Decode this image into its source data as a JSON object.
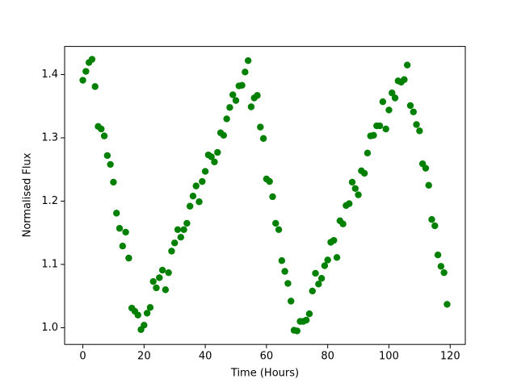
{
  "chart_data": {
    "type": "scatter",
    "xlabel": "Time (Hours)",
    "ylabel": "Normalised Flux",
    "color": "#008000",
    "x": [
      0,
      1,
      2,
      3,
      4,
      5,
      6,
      7,
      8,
      9,
      10,
      11,
      12,
      13,
      14,
      15,
      16,
      17,
      18,
      19,
      20,
      21,
      22,
      23,
      24,
      25,
      26,
      27,
      28,
      29,
      30,
      31,
      32,
      33,
      34,
      35,
      36,
      37,
      38,
      39,
      40,
      41,
      42,
      43,
      44,
      45,
      46,
      47,
      48,
      49,
      50,
      51,
      52,
      53,
      54,
      55,
      56,
      57,
      58,
      59,
      60,
      61,
      62,
      63,
      64,
      65,
      66,
      67,
      68,
      69,
      70,
      71,
      72,
      73,
      74,
      75,
      76,
      77,
      78,
      79,
      80,
      81,
      82,
      83,
      84,
      85,
      86,
      87,
      88,
      89,
      90,
      91,
      92,
      93,
      94,
      95,
      96,
      97,
      98,
      99,
      100,
      101,
      102,
      103,
      104,
      105,
      106,
      107,
      108,
      109,
      110,
      111,
      112,
      113,
      114,
      115,
      116,
      117,
      118,
      119
    ],
    "values": [
      1.391,
      1.405,
      1.419,
      1.424,
      1.381,
      1.318,
      1.314,
      1.303,
      1.272,
      1.258,
      1.23,
      1.181,
      1.157,
      1.129,
      1.151,
      1.11,
      1.031,
      1.026,
      1.02,
      0.997,
      1.004,
      1.023,
      1.032,
      1.073,
      1.063,
      1.079,
      1.091,
      1.06,
      1.087,
      1.121,
      1.134,
      1.155,
      1.143,
      1.155,
      1.165,
      1.192,
      1.208,
      1.224,
      1.199,
      1.231,
      1.247,
      1.273,
      1.27,
      1.262,
      1.277,
      1.308,
      1.304,
      1.33,
      1.348,
      1.368,
      1.359,
      1.382,
      1.383,
      1.404,
      1.422,
      1.349,
      1.363,
      1.367,
      1.317,
      1.299,
      1.235,
      1.231,
      1.207,
      1.165,
      1.155,
      1.106,
      1.089,
      1.07,
      1.042,
      0.996,
      0.995,
      1.01,
      1.01,
      1.012,
      1.022,
      1.058,
      1.086,
      1.069,
      1.078,
      1.098,
      1.107,
      1.135,
      1.138,
      1.111,
      1.169,
      1.164,
      1.193,
      1.196,
      1.23,
      1.22,
      1.21,
      1.248,
      1.244,
      1.276,
      1.303,
      1.304,
      1.319,
      1.319,
      1.357,
      1.314,
      1.344,
      1.371,
      1.363,
      1.39,
      1.388,
      1.392,
      1.415,
      1.351,
      1.341,
      1.321,
      1.311,
      1.259,
      1.252,
      1.225,
      1.171,
      1.161,
      1.115,
      1.097,
      1.087,
      1.037
    ],
    "xlim": [
      -5.95,
      124.95
    ],
    "ylim": [
      0.9736,
      1.4444
    ],
    "xticks": [
      0,
      20,
      40,
      60,
      80,
      100,
      120
    ],
    "yticks": [
      {
        "value": 1.0,
        "label": "1.0"
      },
      1.1,
      1.2,
      1.3,
      1.4
    ]
  }
}
